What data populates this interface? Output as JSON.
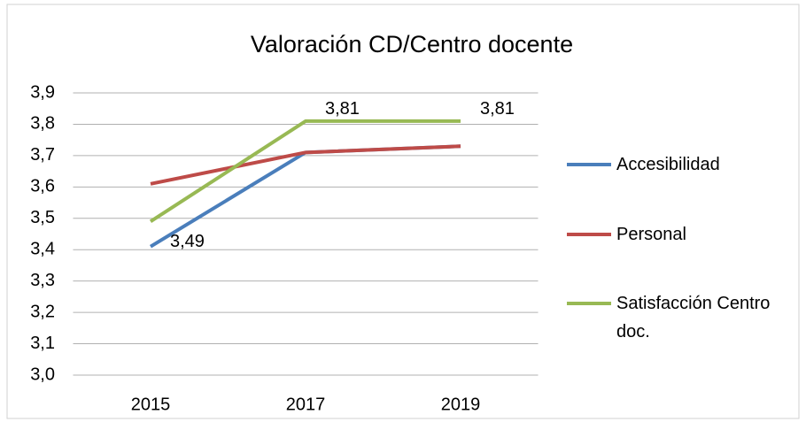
{
  "chart_data": {
    "type": "line",
    "title": "Valoración CD/Centro docente",
    "categories": [
      "2015",
      "2017",
      "2019"
    ],
    "series": [
      {
        "name": "Accesibilidad",
        "color": "#4a7ebb",
        "values": [
          3.41,
          3.71,
          3.73
        ]
      },
      {
        "name": "Personal",
        "color": "#be4b48",
        "values": [
          3.61,
          3.71,
          3.73
        ]
      },
      {
        "name": "Satisfacción Centro doc.",
        "color": "#98b954",
        "values": [
          3.49,
          3.81,
          3.81
        ],
        "value_labels": [
          "3,49",
          "3,81",
          "3,81"
        ]
      }
    ],
    "ylim": [
      3.0,
      3.9
    ],
    "yticks": [
      {
        "value": 3.0,
        "label": "3,0"
      },
      {
        "value": 3.1,
        "label": "3,1"
      },
      {
        "value": 3.2,
        "label": "3,2"
      },
      {
        "value": 3.3,
        "label": "3,3"
      },
      {
        "value": 3.4,
        "label": "3,4"
      },
      {
        "value": 3.5,
        "label": "3,5"
      },
      {
        "value": 3.6,
        "label": "3,6"
      },
      {
        "value": 3.7,
        "label": "3,7"
      },
      {
        "value": 3.8,
        "label": "3,8"
      },
      {
        "value": 3.9,
        "label": "3,9"
      }
    ],
    "grid": true,
    "legend": "right"
  }
}
